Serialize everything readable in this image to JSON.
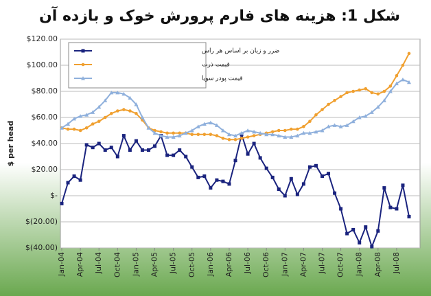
{
  "chart_data": {
    "type": "line",
    "title": "شکل 1: هزینه های فارم پرورش خوک و بازده آن",
    "y_label": "$ per head",
    "categories": [
      "Jan-04",
      null,
      null,
      "Apr-04",
      null,
      null,
      "Jul-04",
      null,
      null,
      "Oct-04",
      null,
      null,
      "Jan-05",
      null,
      null,
      "Apr-05",
      null,
      null,
      "Jul-05",
      null,
      null,
      "Oct-05",
      null,
      null,
      "Jan-06",
      null,
      null,
      "Apr-06",
      null,
      null,
      "Jul-06",
      null,
      null,
      "Oct-06",
      null,
      null,
      "Jan-07",
      null,
      null,
      "Apr-07",
      null,
      null,
      "Jul-07",
      null,
      null,
      "Oct-07",
      null,
      null,
      "Jan-08",
      null,
      null,
      "Apr-08",
      null,
      null,
      "Jul-08",
      null,
      null
    ],
    "series": [
      {
        "name": "ضرر و زیان بر اساس هر راس",
        "color": "#1a237e",
        "marker": "square",
        "values": [
          -6,
          10,
          15,
          12,
          39,
          37,
          40,
          35,
          37,
          30,
          46,
          35,
          42,
          35,
          35,
          38,
          46,
          31,
          31,
          35,
          30,
          22,
          14,
          15,
          6,
          12,
          11,
          9,
          27,
          47,
          32,
          40,
          29,
          21,
          14,
          5,
          0,
          13,
          1,
          9,
          22,
          23,
          15,
          17,
          2,
          -10,
          -29,
          -26,
          -36,
          -24,
          -39,
          -27,
          6,
          -9,
          -10,
          8,
          -16
        ]
      },
      {
        "name": "قیمت ذرت",
        "color": "#f0a030",
        "marker": "circle",
        "values": [
          52,
          51,
          51,
          50,
          52,
          55,
          57,
          60,
          63,
          65,
          66,
          65,
          63,
          58,
          52,
          50,
          49,
          48,
          48,
          48,
          48,
          47,
          47,
          47,
          47,
          46,
          44,
          43,
          43,
          44,
          45,
          46,
          47,
          48,
          49,
          50,
          50,
          51,
          51,
          53,
          57,
          62,
          66,
          70,
          73,
          76,
          79,
          80,
          81,
          82,
          79,
          78,
          80,
          84,
          92,
          100,
          109
        ]
      },
      {
        "name": "قیمت پودر سویا",
        "color": "#8fb0dc",
        "marker": "triangle",
        "values": [
          52,
          55,
          59,
          61,
          62,
          64,
          68,
          73,
          79,
          79,
          78,
          75,
          70,
          60,
          52,
          48,
          46,
          45,
          45,
          46,
          48,
          50,
          53,
          55,
          56,
          54,
          50,
          47,
          46,
          48,
          50,
          49,
          48,
          47,
          47,
          46,
          45,
          45,
          46,
          48,
          48,
          49,
          50,
          53,
          54,
          53,
          54,
          57,
          60,
          61,
          64,
          68,
          73,
          80,
          86,
          89,
          87
        ]
      }
    ],
    "ylim": [
      -40,
      120
    ],
    "yticks": [
      {
        "value": -40,
        "label": "$(40.00)"
      },
      {
        "value": -20,
        "label": "$(20.00)"
      },
      {
        "value": 0,
        "label": "$-"
      },
      {
        "value": 20,
        "label": "$20.00"
      },
      {
        "value": 40,
        "label": "$40.00"
      },
      {
        "value": 60,
        "label": "$60.00"
      },
      {
        "value": 80,
        "label": "$80.00"
      },
      {
        "value": 100,
        "label": "$100.00"
      },
      {
        "value": 120,
        "label": "$120.00"
      }
    ],
    "grid": true,
    "legend": "upper left"
  }
}
